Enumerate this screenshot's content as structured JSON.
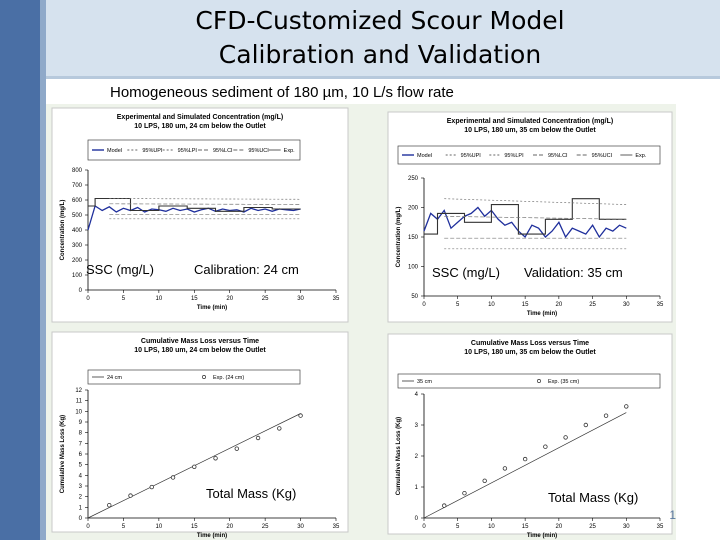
{
  "slide": {
    "title_line1": "CFD-Customized Scour Model",
    "title_line2": "Calibration and Validation",
    "subtitle": "Homogeneous sediment of 180 µm, 10 L/s flow rate",
    "page_number": "1",
    "colors": {
      "left_bar": "#4a6fa5",
      "header_band": "#d6e2ee",
      "series_blue": "#1f2f9c"
    }
  },
  "overlays": {
    "ssc_left": "SSC (mg/L)",
    "calibration": "Calibration: 24 cm",
    "ssc_right": "SSC (mg/L)",
    "validation": "Validation: 35 cm",
    "mass_left": "Total Mass (Kg)",
    "mass_right": "Total Mass (Kg)"
  },
  "chart_data": [
    {
      "id": "conc24",
      "type": "line",
      "title": "Experimental and Simulated Concentration (mg/L)",
      "subtitle": "10 LPS, 180 um, 24 cm below the Outlet",
      "xlabel": "Time (min)",
      "ylabel": "Concentration (mg/L)",
      "xlim": [
        0,
        35
      ],
      "ylim": [
        0,
        800
      ],
      "xticks": [
        0,
        5,
        10,
        15,
        20,
        25,
        30,
        35
      ],
      "yticks": [
        0,
        100,
        200,
        300,
        400,
        500,
        600,
        700,
        800
      ],
      "legend": [
        "Model",
        "95%UPI",
        "95%LPI",
        "95%LCI",
        "95%UCI",
        "Exp."
      ],
      "series": [
        {
          "name": "Model",
          "x": [
            0,
            1,
            2,
            3,
            4,
            5,
            6,
            7,
            8,
            9,
            10,
            11,
            12,
            13,
            14,
            15,
            16,
            17,
            18,
            19,
            20,
            21,
            22,
            23,
            24,
            25,
            26,
            27,
            28,
            29,
            30
          ],
          "values": [
            400,
            560,
            530,
            555,
            520,
            545,
            530,
            550,
            520,
            540,
            535,
            525,
            545,
            530,
            540,
            520,
            535,
            545,
            525,
            540,
            530,
            535,
            520,
            545,
            530,
            540,
            525,
            540,
            535,
            530,
            540
          ]
        },
        {
          "name": "Exp.",
          "x": [
            0,
            1,
            1,
            6,
            6,
            10,
            10,
            14,
            14,
            18,
            18,
            22,
            22,
            26,
            26,
            30
          ],
          "values": [
            560,
            560,
            610,
            610,
            530,
            530,
            560,
            560,
            545,
            545,
            525,
            525,
            550,
            550,
            540,
            540
          ]
        },
        {
          "name": "95%UPI",
          "x": [
            3,
            30
          ],
          "values": [
            610,
            605
          ]
        },
        {
          "name": "95%LPI",
          "x": [
            3,
            30
          ],
          "values": [
            475,
            475
          ]
        },
        {
          "name": "95%UCI",
          "x": [
            3,
            30
          ],
          "values": [
            575,
            570
          ]
        },
        {
          "name": "95%LCI",
          "x": [
            3,
            30
          ],
          "values": [
            505,
            505
          ]
        }
      ]
    },
    {
      "id": "conc35",
      "type": "line",
      "title": "Experimental and Simulated Concentration (mg/L)",
      "subtitle": "10 LPS, 180 um, 35 cm below the Outlet",
      "xlabel": "Time (min)",
      "ylabel": "Concentration (mg/L)",
      "xlim": [
        0,
        35
      ],
      "ylim": [
        50,
        250
      ],
      "xticks": [
        0,
        5,
        10,
        15,
        20,
        25,
        30,
        35
      ],
      "yticks": [
        50,
        100,
        150,
        200,
        250
      ],
      "legend": [
        "Model",
        "95%UPI",
        "95%LPI",
        "95%LCI",
        "95%UCI",
        "Exp."
      ],
      "series": [
        {
          "name": "Model",
          "x": [
            0,
            1,
            2,
            3,
            4,
            5,
            6,
            7,
            8,
            9,
            10,
            11,
            12,
            13,
            14,
            15,
            16,
            17,
            18,
            19,
            20,
            21,
            22,
            23,
            24,
            25,
            26,
            27,
            28,
            29,
            30
          ],
          "values": [
            160,
            190,
            180,
            195,
            165,
            175,
            185,
            190,
            200,
            185,
            195,
            180,
            170,
            175,
            160,
            150,
            170,
            165,
            150,
            160,
            175,
            150,
            165,
            160,
            155,
            170,
            150,
            165,
            160,
            170,
            165
          ]
        },
        {
          "name": "Exp.",
          "x": [
            0,
            2,
            2,
            6,
            6,
            10,
            10,
            14,
            14,
            18,
            18,
            22,
            22,
            26,
            26,
            30
          ],
          "values": [
            155,
            155,
            190,
            190,
            175,
            175,
            205,
            205,
            155,
            155,
            180,
            180,
            215,
            215,
            180,
            180
          ]
        },
        {
          "name": "95%UPI",
          "x": [
            3,
            30
          ],
          "values": [
            215,
            205
          ]
        },
        {
          "name": "95%LPI",
          "x": [
            3,
            30
          ],
          "values": [
            130,
            130
          ]
        },
        {
          "name": "95%UCI",
          "x": [
            3,
            30
          ],
          "values": [
            185,
            180
          ]
        },
        {
          "name": "95%LCI",
          "x": [
            3,
            30
          ],
          "values": [
            148,
            148
          ]
        }
      ]
    },
    {
      "id": "mass24",
      "type": "scatter",
      "title": "Cumulative Mass Loss versus Time",
      "subtitle": "10 LPS, 180 um, 24 cm below the Outlet",
      "xlabel": "Time (min)",
      "ylabel": "Cumulative Mass Loss (Kg)",
      "xlim": [
        0,
        35
      ],
      "ylim": [
        0,
        12
      ],
      "xticks": [
        0,
        5,
        10,
        15,
        20,
        25,
        30,
        35
      ],
      "yticks": [
        0,
        1,
        2,
        3,
        4,
        5,
        6,
        7,
        8,
        9,
        10,
        11,
        12
      ],
      "legend": [
        "24 cm",
        "Exp. (24 cm)"
      ],
      "series": [
        {
          "name": "24 cm",
          "x": [
            0,
            30
          ],
          "values": [
            0,
            9.8
          ]
        },
        {
          "name": "Exp. (24 cm)",
          "x": [
            3,
            6,
            9,
            12,
            15,
            18,
            21,
            24,
            27,
            30
          ],
          "values": [
            1.2,
            2.1,
            2.9,
            3.8,
            4.8,
            5.6,
            6.5,
            7.5,
            8.4,
            9.6
          ]
        }
      ]
    },
    {
      "id": "mass35",
      "type": "scatter",
      "title": "Cumulative Mass Loss versus Time",
      "subtitle": "10 LPS, 180 um, 35 cm below the Outlet",
      "xlabel": "Time (min)",
      "ylabel": "Cumulative Mass Loss (Kg)",
      "xlim": [
        0,
        35
      ],
      "ylim": [
        0,
        4
      ],
      "xticks": [
        0,
        5,
        10,
        15,
        20,
        25,
        30,
        35
      ],
      "yticks": [
        0,
        1,
        2,
        3,
        4
      ],
      "legend": [
        "35 cm",
        "Exp. (35 cm)"
      ],
      "series": [
        {
          "name": "35 cm",
          "x": [
            0,
            30
          ],
          "values": [
            0,
            3.4
          ]
        },
        {
          "name": "Exp. (35 cm)",
          "x": [
            3,
            6,
            9,
            12,
            15,
            18,
            21,
            24,
            27,
            30
          ],
          "values": [
            0.4,
            0.8,
            1.2,
            1.6,
            1.9,
            2.3,
            2.6,
            3.0,
            3.3,
            3.6
          ]
        }
      ]
    }
  ]
}
